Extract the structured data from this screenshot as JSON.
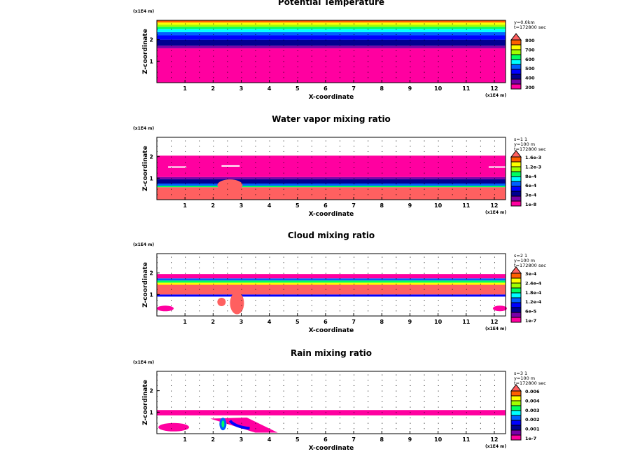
{
  "chart_data": [
    {
      "type": "heatmap",
      "title": "Potential Temperature",
      "xlabel": "X-coordinate",
      "ylabel": "Z-coordinate",
      "x_unit": "(x1E4 m)",
      "z_unit": "(x1E4 m)",
      "info": [
        "y=0.0km",
        "t=172800 sec"
      ],
      "xticks": [
        "1",
        "2",
        "3",
        "4",
        "5",
        "6",
        "7",
        "8",
        "9",
        "10",
        "11",
        "12"
      ],
      "yticks": [
        "1",
        "2"
      ],
      "xlim": [
        0,
        12.4
      ],
      "ylim": [
        0,
        2.9
      ],
      "legend_labels": [
        "800",
        "700",
        "600",
        "500",
        "400",
        "300"
      ],
      "bands": [
        {
          "z": [
            0,
            1.6
          ],
          "c": "#ff00a0"
        },
        {
          "z": [
            1.6,
            1.72
          ],
          "c": "#7a00a8"
        },
        {
          "z": [
            1.72,
            2.0
          ],
          "c": "#000090"
        },
        {
          "z": [
            2.0,
            2.2
          ],
          "c": "#0000ff"
        },
        {
          "z": [
            2.2,
            2.35
          ],
          "c": "#0060ff"
        },
        {
          "z": [
            2.35,
            2.5
          ],
          "c": "#00ffff"
        },
        {
          "z": [
            2.5,
            2.6
          ],
          "c": "#00ff60"
        },
        {
          "z": [
            2.6,
            2.7
          ],
          "c": "#a0ff00"
        },
        {
          "z": [
            2.7,
            2.8
          ],
          "c": "#ffff00"
        },
        {
          "z": [
            2.8,
            2.9
          ],
          "c": "#ff6000"
        }
      ]
    },
    {
      "type": "heatmap",
      "title": "Water vapor mixing ratio",
      "xlabel": "X-coordinate",
      "ylabel": "Z-coordinate",
      "x_unit": "(x1E4 m)",
      "z_unit": "(x1E4 m)",
      "info": [
        "s=1 1",
        "y=100 m",
        "t=172800 sec"
      ],
      "xticks": [
        "1",
        "2",
        "3",
        "4",
        "5",
        "6",
        "7",
        "8",
        "9",
        "10",
        "11",
        "12"
      ],
      "yticks": [
        "1",
        "2"
      ],
      "xlim": [
        0,
        12.4
      ],
      "ylim": [
        0,
        2.9
      ],
      "legend_labels": [
        "1.6e-3",
        "1.2e-3",
        "8e-4",
        "6e-4",
        "3e-4",
        "1e-8"
      ],
      "bands": [
        {
          "z": [
            0,
            0.58
          ],
          "c": "#ff6060"
        },
        {
          "z": [
            0.58,
            0.65
          ],
          "c": "#00ff60"
        },
        {
          "z": [
            0.65,
            0.75
          ],
          "c": "#0060ff"
        },
        {
          "z": [
            0.75,
            0.95
          ],
          "c": "#000090"
        },
        {
          "z": [
            0.95,
            1.05
          ],
          "c": "#7a00a8"
        },
        {
          "z": [
            1.05,
            2.05
          ],
          "c": "#ff00a0"
        }
      ]
    },
    {
      "type": "heatmap",
      "title": "Cloud mixing ratio",
      "xlabel": "X-coordinate",
      "ylabel": "Z-coordinate",
      "x_unit": "(x1E4 m)",
      "z_unit": "(x1E4 m)",
      "info": [
        "s=2 1",
        "y=100 m",
        "t=172800 sec"
      ],
      "xticks": [
        "1",
        "2",
        "3",
        "4",
        "5",
        "6",
        "7",
        "8",
        "9",
        "10",
        "11",
        "12"
      ],
      "yticks": [
        "1",
        "2"
      ],
      "xlim": [
        0,
        12.4
      ],
      "ylim": [
        0,
        2.9
      ],
      "legend_labels": [
        "3e-4",
        "2.4e-4",
        "1.8e-4",
        "1.2e-4",
        "6e-5",
        "1e-7"
      ],
      "bands": [
        {
          "z": [
            0.9,
            1.0
          ],
          "c": "#0000ff"
        },
        {
          "z": [
            1.0,
            1.45
          ],
          "c": "#ff6060"
        },
        {
          "z": [
            1.45,
            1.55
          ],
          "c": "#ffff00"
        },
        {
          "z": [
            1.55,
            1.65
          ],
          "c": "#00ff60"
        },
        {
          "z": [
            1.65,
            1.75
          ],
          "c": "#0060ff"
        },
        {
          "z": [
            1.75,
            1.95
          ],
          "c": "#ff00a0"
        }
      ]
    },
    {
      "type": "heatmap",
      "title": "Rain mixing ratio",
      "xlabel": "X-coordinate",
      "ylabel": "Z-coordinate",
      "x_unit": "(x1E4 m)",
      "z_unit": "(x1E4 m)",
      "info": [
        "s=3 1",
        "y=100 m",
        "t=172800 sec"
      ],
      "xticks": [
        "1",
        "2",
        "3",
        "4",
        "5",
        "6",
        "7",
        "8",
        "9",
        "10",
        "11",
        "12"
      ],
      "yticks": [
        "1",
        "2"
      ],
      "xlim": [
        0,
        12.4
      ],
      "ylim": [
        0,
        2.9
      ],
      "legend_labels": [
        "0.006",
        "0.004",
        "0.003",
        "0.002",
        "0.001",
        "1e-7"
      ],
      "bands": [
        {
          "z": [
            0.85,
            1.1
          ],
          "c": "#ff00a0"
        }
      ]
    }
  ],
  "legend_colors": [
    "#ff00a0",
    "#7a00a8",
    "#000090",
    "#0000ff",
    "#0060ff",
    "#00ffff",
    "#00ff60",
    "#a0ff00",
    "#ffff00",
    "#ff6000",
    "#ff6060"
  ]
}
